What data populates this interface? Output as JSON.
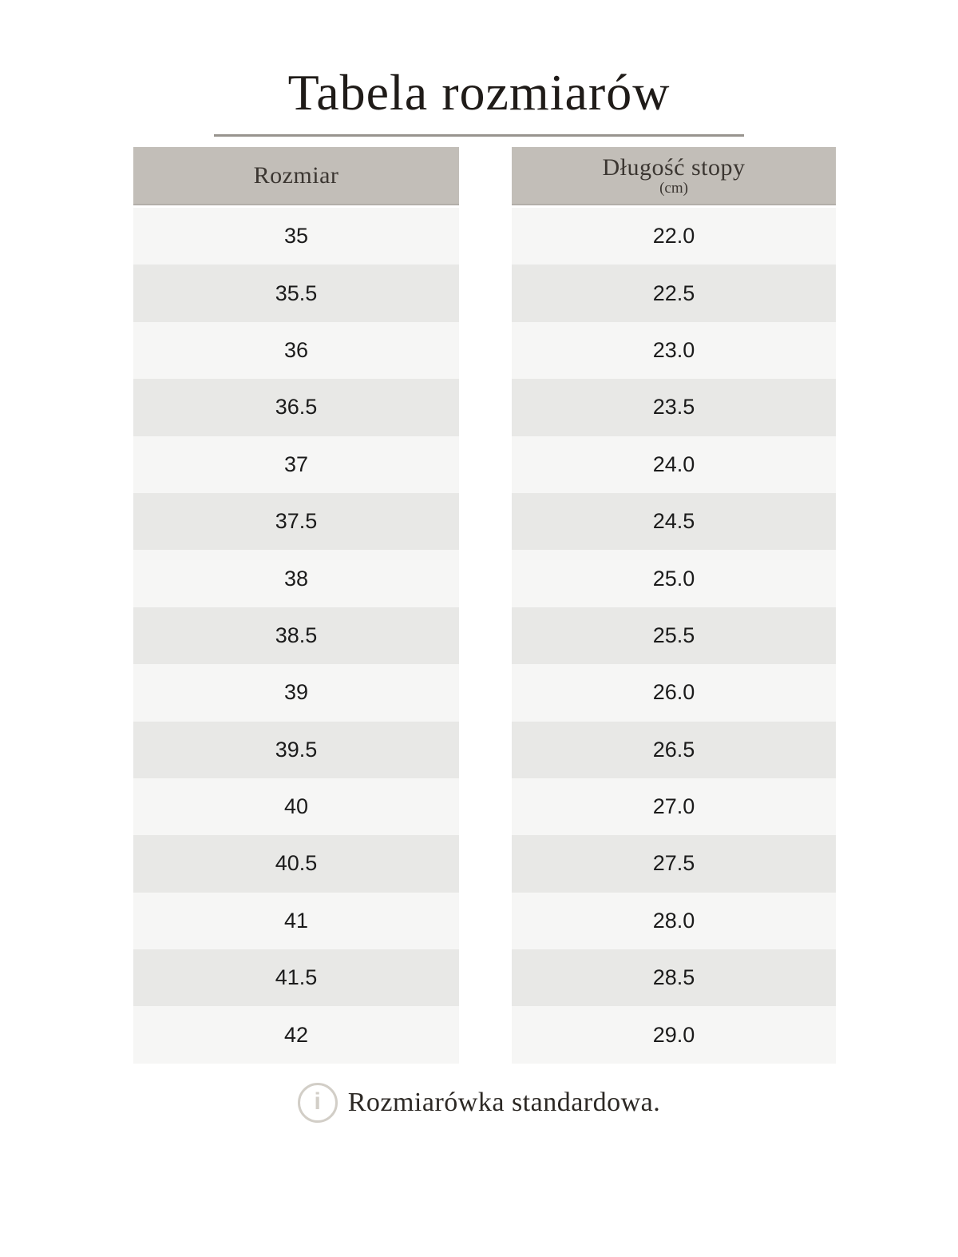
{
  "page": {
    "title": "Tabela rozmiarów",
    "note": "Rozmiarówka standardowa.",
    "info_icon_glyph": "i"
  },
  "colors": {
    "title_text": "#1f1b18",
    "rule": "#98948e",
    "header_bg": "#c2beb8",
    "header_edge": "#b2aea8",
    "header_text": "#3b3631",
    "row_light": "#f6f6f5",
    "row_dark": "#e8e8e6",
    "cell_text": "#1b1b1b",
    "icon": "#d2cec7",
    "note_text": "#2c2824"
  },
  "size_table": {
    "columns": [
      {
        "id": "size",
        "header": "Rozmiar",
        "subheader": "",
        "values": [
          "35",
          "35.5",
          "36",
          "36.5",
          "37",
          "37.5",
          "38",
          "38.5",
          "39",
          "39.5",
          "40",
          "40.5",
          "41",
          "41.5",
          "42"
        ]
      },
      {
        "id": "foot-length",
        "header": "Długość stopy",
        "subheader": "(cm)",
        "values": [
          "22.0",
          "22.5",
          "23.0",
          "23.5",
          "24.0",
          "24.5",
          "25.0",
          "25.5",
          "26.0",
          "26.5",
          "27.0",
          "27.5",
          "28.0",
          "28.5",
          "29.0"
        ]
      }
    ]
  }
}
